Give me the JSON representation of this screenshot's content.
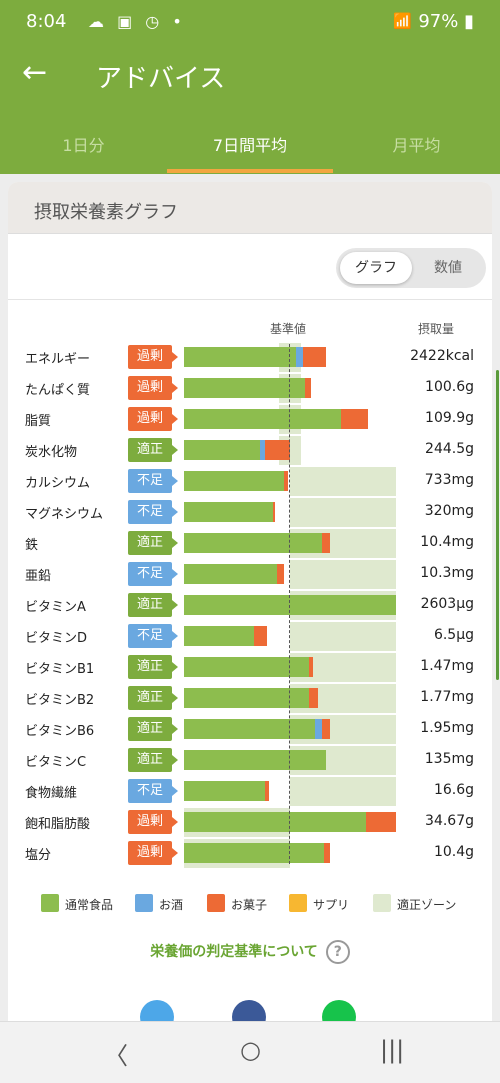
{
  "status_bar": {
    "time": "8:04",
    "battery": "97%",
    "dot": "•"
  },
  "header": {
    "title": "アドバイス",
    "back_icon": "arrow-left-icon"
  },
  "tabs": [
    {
      "label": "1日分",
      "active": false
    },
    {
      "label": "7日間平均",
      "active": true
    },
    {
      "label": "月平均",
      "active": false
    }
  ],
  "card": {
    "title": "摂取栄養素グラフ"
  },
  "toggle": {
    "graph": "グラフ",
    "numeric": "数値",
    "selected": "グラフ"
  },
  "columns": {
    "reference": "基準値",
    "intake": "摂取量"
  },
  "colors": {
    "food": "#8dbd4e",
    "alcohol": "#6aa8e0",
    "snack": "#ed6a35",
    "supplement": "#f7b731",
    "zone": "#dfe9cf",
    "over": "#ed6a35",
    "ok": "#7dac3e",
    "low": "#6aa8e0"
  },
  "nutrients": [
    {
      "name": "エネルギー",
      "status": "過剰",
      "status_type": "over",
      "value": "2422kcal",
      "food": 0.53,
      "alcohol": 0.03,
      "snack": 0.11,
      "zone": [
        0.45,
        0.55
      ]
    },
    {
      "name": "たんぱく質",
      "status": "過剰",
      "status_type": "over",
      "value": "100.6g",
      "food": 0.57,
      "alcohol": 0,
      "snack": 0.03,
      "zone": [
        0.45,
        0.55
      ]
    },
    {
      "name": "脂質",
      "status": "過剰",
      "status_type": "over",
      "value": "109.9g",
      "food": 0.74,
      "alcohol": 0,
      "snack": 0.13,
      "zone": [
        0.45,
        0.55
      ]
    },
    {
      "name": "炭水化物",
      "status": "適正",
      "status_type": "ok",
      "value": "244.5g",
      "food": 0.36,
      "alcohol": 0.02,
      "snack": 0.12,
      "zone": [
        0.45,
        0.55
      ]
    },
    {
      "name": "カルシウム",
      "status": "不足",
      "status_type": "low",
      "value": "733mg",
      "food": 0.47,
      "alcohol": 0,
      "snack": 0.02,
      "zone": [
        0.5,
        1.0
      ]
    },
    {
      "name": "マグネシウム",
      "status": "不足",
      "status_type": "low",
      "value": "320mg",
      "food": 0.42,
      "alcohol": 0,
      "snack": 0.01,
      "zone": [
        0.5,
        1.0
      ]
    },
    {
      "name": "鉄",
      "status": "適正",
      "status_type": "ok",
      "value": "10.4mg",
      "food": 0.65,
      "alcohol": 0,
      "snack": 0.04,
      "zone": [
        0.5,
        1.0
      ]
    },
    {
      "name": "亜鉛",
      "status": "不足",
      "status_type": "low",
      "value": "10.3mg",
      "food": 0.44,
      "alcohol": 0,
      "snack": 0.03,
      "zone": [
        0.5,
        1.0
      ]
    },
    {
      "name": "ビタミンA",
      "status": "適正",
      "status_type": "ok",
      "value": "2603μg",
      "food": 1.0,
      "alcohol": 0,
      "snack": 0,
      "zone": [
        0.5,
        1.0
      ]
    },
    {
      "name": "ビタミンD",
      "status": "不足",
      "status_type": "low",
      "value": "6.5μg",
      "food": 0.33,
      "alcohol": 0,
      "snack": 0.06,
      "zone": [
        0.5,
        1.0
      ]
    },
    {
      "name": "ビタミンB1",
      "status": "適正",
      "status_type": "ok",
      "value": "1.47mg",
      "food": 0.59,
      "alcohol": 0,
      "snack": 0.02,
      "zone": [
        0.5,
        1.0
      ]
    },
    {
      "name": "ビタミンB2",
      "status": "適正",
      "status_type": "ok",
      "value": "1.77mg",
      "food": 0.59,
      "alcohol": 0,
      "snack": 0.04,
      "zone": [
        0.5,
        1.0
      ]
    },
    {
      "name": "ビタミンB6",
      "status": "適正",
      "status_type": "ok",
      "value": "1.95mg",
      "food": 0.62,
      "alcohol": 0.03,
      "snack": 0.04,
      "zone": [
        0.5,
        1.0
      ]
    },
    {
      "name": "ビタミンC",
      "status": "適正",
      "status_type": "ok",
      "value": "135mg",
      "food": 0.67,
      "alcohol": 0,
      "snack": 0,
      "zone": [
        0.5,
        1.0
      ]
    },
    {
      "name": "食物繊維",
      "status": "不足",
      "status_type": "low",
      "value": "16.6g",
      "food": 0.38,
      "alcohol": 0,
      "snack": 0.02,
      "zone": [
        0.5,
        1.0
      ]
    },
    {
      "name": "飽和脂肪酸",
      "status": "過剰",
      "status_type": "over",
      "value": "34.67g",
      "food": 0.86,
      "alcohol": 0,
      "snack": 0.14,
      "zone": [
        0.0,
        0.5
      ]
    },
    {
      "name": "塩分",
      "status": "過剰",
      "status_type": "over",
      "value": "10.4g",
      "food": 0.66,
      "alcohol": 0,
      "snack": 0.03,
      "zone": [
        0.0,
        0.5
      ]
    }
  ],
  "legend": [
    {
      "label": "通常食品",
      "color": "#8dbd4e"
    },
    {
      "label": "お酒",
      "color": "#6aa8e0"
    },
    {
      "label": "お菓子",
      "color": "#ed6a35"
    },
    {
      "label": "サプリ",
      "color": "#f7b731"
    },
    {
      "label": "適正ゾーン",
      "color": "#dfe9cf"
    }
  ],
  "link": {
    "text": "栄養価の判定基準について",
    "help_icon": "question-circle-icon",
    "help_text": "?"
  },
  "social": [
    "twitter-icon",
    "facebook-icon",
    "line-icon"
  ],
  "nav": {
    "back": "〈",
    "home": "○",
    "recents": "|||"
  }
}
